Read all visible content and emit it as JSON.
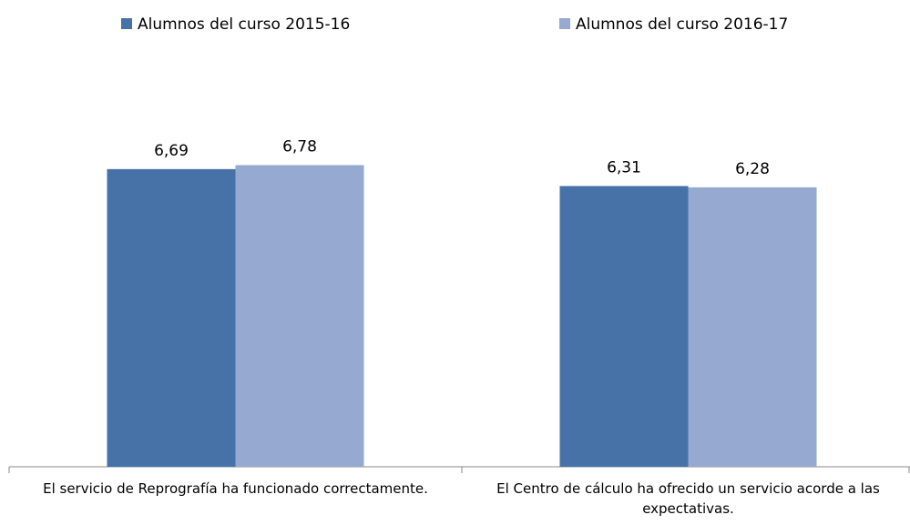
{
  "chart_data": {
    "type": "bar",
    "categories": [
      "El servicio de Reprografía ha funcionado correctamente.",
      "El Centro de cálculo ha ofrecido un servicio acorde a las expectativas."
    ],
    "series": [
      {
        "name": "Alumnos del curso 2015-16",
        "color": "#4672a7",
        "values": [
          6.69,
          6.31
        ],
        "value_labels": [
          "6,69",
          "6,31"
        ]
      },
      {
        "name": "Alumnos del curso 2016-17",
        "color": "#95a9d1",
        "values": [
          6.78,
          6.28
        ],
        "value_labels": [
          "6,78",
          "6,28"
        ]
      }
    ],
    "ylim": [
      0,
      10
    ],
    "legend": "top"
  }
}
